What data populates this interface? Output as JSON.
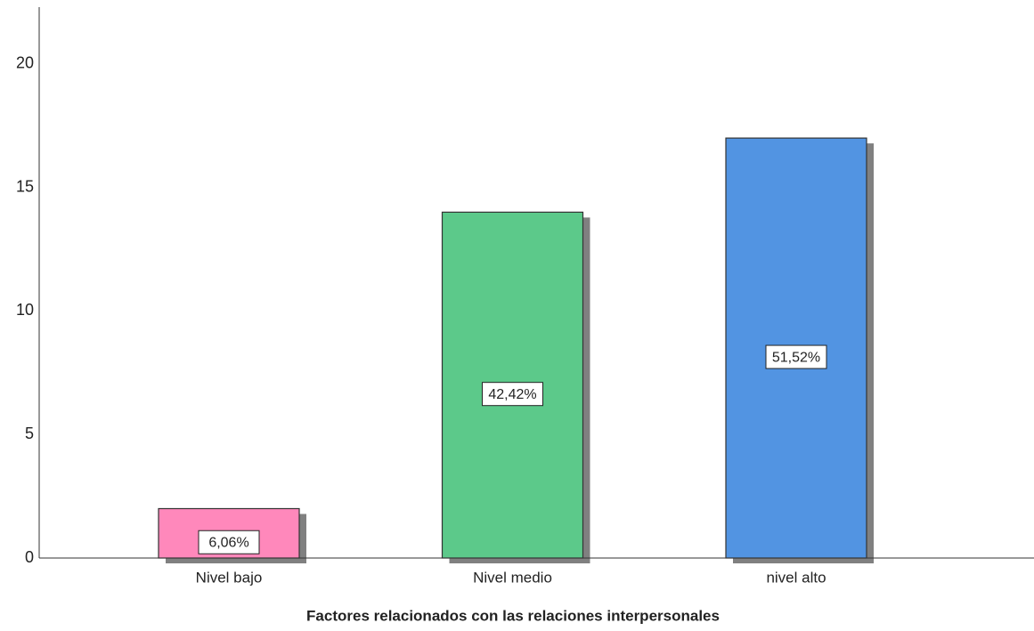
{
  "chart_data": {
    "type": "bar",
    "x_label": "Factores relacionados con las relaciones interpersonales",
    "categories": [
      "Nivel bajo",
      "Nivel medio",
      "nivel alto"
    ],
    "values": [
      2,
      14,
      17
    ],
    "bar_labels": [
      "6,06%",
      "42,42%",
      "51,52%"
    ],
    "colors": [
      "#ff88bb",
      "#5cc98a",
      "#5294e2"
    ],
    "ylim": [
      0,
      22.3
    ],
    "yticks": [
      0,
      5,
      10,
      15,
      20
    ],
    "grid": false
  }
}
